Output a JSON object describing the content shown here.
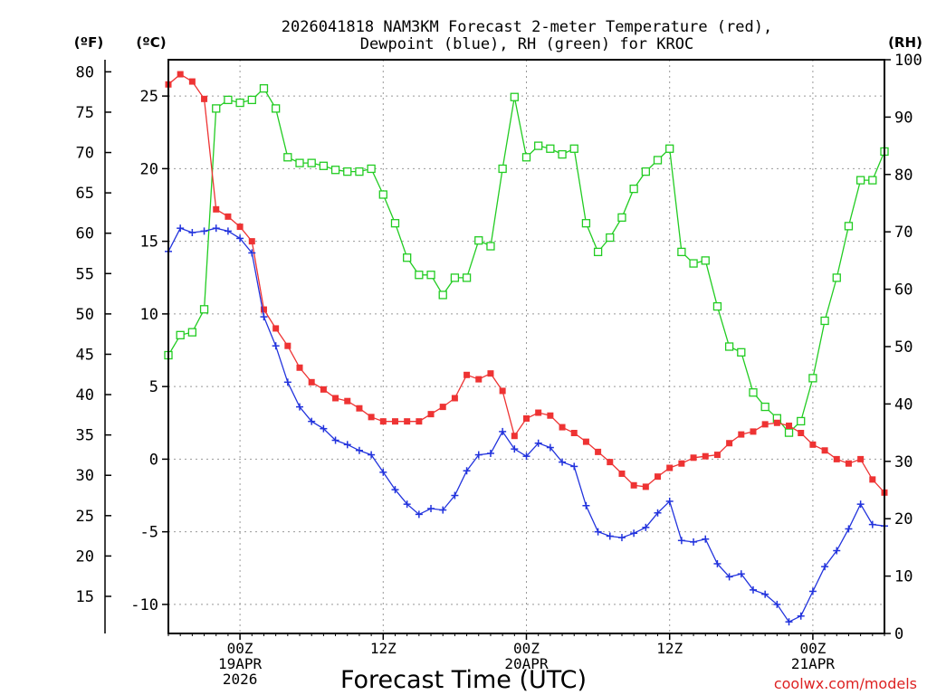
{
  "chart_data": {
    "type": "line",
    "title_line1": "2026041818 NAM3KM Forecast 2-meter Temperature (red),",
    "title_line2": "Dewpoint (blue), RH (green) for KROC",
    "xlabel": "Forecast Time (UTC)",
    "watermark": "coolwx.com/models",
    "unit_left_f": "(ºF)",
    "unit_left_c": "(ºC)",
    "unit_right": "(RH)",
    "x_range_hours": [
      18,
      78
    ],
    "x_ticks": [
      {
        "hour": 24,
        "lines": [
          "00Z",
          "19APR",
          "2026"
        ]
      },
      {
        "hour": 36,
        "lines": [
          "12Z",
          "",
          ""
        ]
      },
      {
        "hour": 48,
        "lines": [
          "00Z",
          "20APR",
          ""
        ]
      },
      {
        "hour": 60,
        "lines": [
          "12Z",
          "",
          ""
        ]
      },
      {
        "hour": 72,
        "lines": [
          "00Z",
          "21APR",
          ""
        ]
      }
    ],
    "celsius_axis": {
      "range": [
        -12,
        27.5
      ],
      "ticks": [
        "25",
        "20",
        "15",
        "10",
        "5",
        "0",
        "-5",
        "-10"
      ],
      "tick_values": [
        25,
        20,
        15,
        10,
        5,
        0,
        -5,
        -10
      ]
    },
    "fahrenheit_axis": {
      "ticks": [
        "80",
        "75",
        "70",
        "65",
        "60",
        "55",
        "50",
        "45",
        "40",
        "35",
        "30",
        "25",
        "20",
        "15"
      ],
      "tick_values": [
        80,
        75,
        70,
        65,
        60,
        55,
        50,
        45,
        40,
        35,
        30,
        25,
        20,
        15
      ]
    },
    "rh_axis": {
      "range": [
        0,
        100
      ],
      "ticks": [
        "100",
        "90",
        "80",
        "70",
        "60",
        "50",
        "40",
        "30",
        "20",
        "10",
        "0"
      ],
      "tick_values": [
        100,
        90,
        80,
        70,
        60,
        50,
        40,
        30,
        20,
        10,
        0
      ]
    },
    "hours": [
      18,
      19,
      20,
      21,
      22,
      23,
      24,
      25,
      26,
      27,
      28,
      29,
      30,
      31,
      32,
      33,
      34,
      35,
      36,
      37,
      38,
      39,
      40,
      41,
      42,
      43,
      44,
      45,
      46,
      47,
      48,
      49,
      50,
      51,
      52,
      53,
      54,
      55,
      56,
      57,
      58,
      59,
      60,
      61,
      62,
      63,
      64,
      65,
      66,
      67,
      68,
      69,
      70,
      71,
      72,
      73,
      74,
      75,
      76,
      77,
      78
    ],
    "series": [
      {
        "name": "Temperature",
        "unit": "C",
        "color": "#ee3333",
        "marker": "filled-square",
        "values": [
          25.8,
          26.5,
          26.0,
          24.8,
          17.2,
          16.7,
          16.0,
          15.0,
          10.3,
          9.0,
          7.8,
          6.3,
          5.3,
          4.8,
          4.2,
          4.0,
          3.5,
          2.9,
          2.6,
          2.6,
          2.6,
          2.6,
          3.1,
          3.6,
          4.2,
          5.8,
          5.5,
          5.9,
          4.7,
          1.6,
          2.8,
          3.2,
          3.0,
          2.2,
          1.8,
          1.2,
          0.5,
          -0.2,
          -1.0,
          -1.8,
          -1.9,
          -1.2,
          -0.6,
          -0.3,
          0.1,
          0.2,
          0.3,
          1.1,
          1.7,
          1.9,
          2.4,
          2.5,
          2.3,
          1.8,
          1.0,
          0.6,
          0.0,
          -0.3,
          0.0,
          -1.4,
          -2.3
        ]
      },
      {
        "name": "Dewpoint",
        "unit": "C",
        "color": "#2233dd",
        "marker": "plus",
        "values": [
          14.3,
          15.9,
          15.6,
          15.7,
          15.9,
          15.7,
          15.2,
          14.2,
          9.8,
          7.8,
          5.3,
          3.6,
          2.6,
          2.1,
          1.3,
          1.0,
          0.6,
          0.3,
          -0.9,
          -2.1,
          -3.1,
          -3.8,
          -3.4,
          -3.5,
          -2.5,
          -0.8,
          0.3,
          0.4,
          1.9,
          0.7,
          0.2,
          1.1,
          0.8,
          -0.2,
          -0.5,
          -3.2,
          -5.0,
          -5.3,
          -5.4,
          -5.1,
          -4.7,
          -3.7,
          -2.9,
          -5.6,
          -5.7,
          -5.5,
          -7.2,
          -8.1,
          -7.9,
          -9.0,
          -9.3,
          -10.0,
          -11.2,
          -10.8,
          -9.1,
          -7.4,
          -6.3,
          -4.8,
          -3.1,
          -4.5,
          -4.6
        ]
      },
      {
        "name": "RH",
        "unit": "%",
        "color": "#22cc22",
        "marker": "open-square",
        "values": [
          48.5,
          52.0,
          52.5,
          56.5,
          91.5,
          93.0,
          92.5,
          93.0,
          95.0,
          91.5,
          83.0,
          82.0,
          82.0,
          81.5,
          80.8,
          80.5,
          80.5,
          81.0,
          76.5,
          71.5,
          65.5,
          62.5,
          62.5,
          59.0,
          62.0,
          62.0,
          68.5,
          67.5,
          81.0,
          93.5,
          83.0,
          85.0,
          84.5,
          83.5,
          84.5,
          71.5,
          66.5,
          69.0,
          72.5,
          77.5,
          80.5,
          82.5,
          84.5,
          66.5,
          64.5,
          65.0,
          57.0,
          50.0,
          49.0,
          42.0,
          39.5,
          37.5,
          35.0,
          37.0,
          44.5,
          54.5,
          62.0,
          71.0,
          79.0,
          79.0,
          84.0
        ]
      }
    ]
  }
}
